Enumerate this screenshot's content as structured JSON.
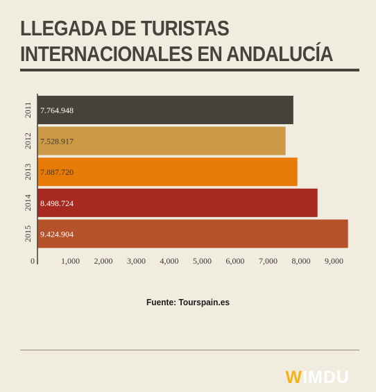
{
  "header": {
    "title_line1": "LLEGADA DE TURISTAS",
    "title_line2": "INTERNACIONALES EN ANDALUCÍA"
  },
  "chart_data": {
    "type": "bar",
    "orientation": "horizontal",
    "categories": [
      "2011",
      "2012",
      "2013",
      "2014",
      "2015"
    ],
    "values": [
      7764.948,
      7528.917,
      7887.72,
      8498.724,
      9424.904
    ],
    "value_labels": [
      "7.764.948",
      "7.528.917",
      "7.887.720",
      "8.498.724",
      "9.424.904"
    ],
    "colors": [
      "#45423a",
      "#cc9a47",
      "#e87b07",
      "#a8291f",
      "#b5522a"
    ],
    "label_colors": [
      "#ffffff",
      "#3a3530",
      "#3a3530",
      "#ffffff",
      "#ffffff"
    ],
    "xticks": [
      0,
      1000,
      2000,
      3000,
      4000,
      5000,
      6000,
      7000,
      8000,
      9000
    ],
    "xtick_labels": [
      "0",
      "1,000",
      "2,000",
      "3,000",
      "4,000",
      "5,000",
      "6,000",
      "7,000",
      "8,000",
      "9,000"
    ],
    "xlim": [
      0,
      10000
    ],
    "grid": false,
    "legend": "none"
  },
  "source": {
    "text": "Fuente: Tourspain.es"
  },
  "logo": {
    "w": "W",
    "rest": "IMDU"
  }
}
